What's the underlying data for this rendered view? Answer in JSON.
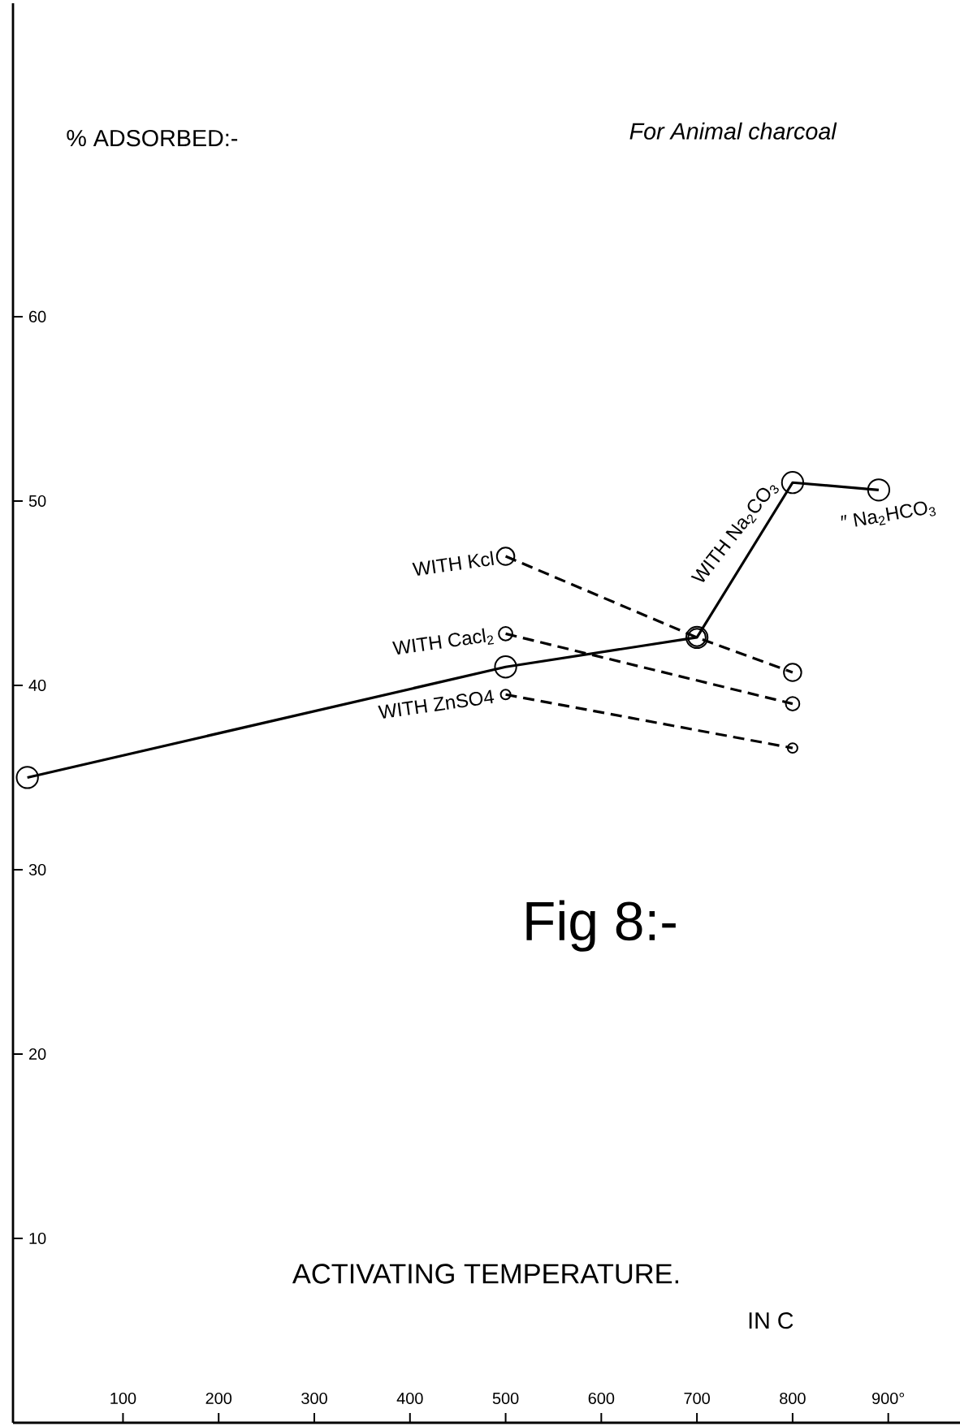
{
  "chart_data": {
    "type": "line",
    "title": "Fig 8:-",
    "subtitle": "For Animal charcoal",
    "xlabel": "ACTIVATING TEMPERATURE.",
    "ylabel": "% ADSORBED:-",
    "annotations": [
      {
        "text": "″ Na$_{2}$HCO$_{3}$",
        "x": 890,
        "y": 50.6
      },
      "IN C"
    ],
    "xlim": [
      -15,
      975
    ],
    "ylim": [
      0,
      77
    ],
    "xticks": [
      100,
      200,
      300,
      400,
      500,
      600,
      700,
      800,
      {
        "value": 900,
        "label": "900°"
      }
    ],
    "yticks": [
      10,
      20,
      30,
      40,
      50,
      60
    ],
    "marker": "circle",
    "grid": false,
    "legend": false,
    "series": [
      {
        "name": "WITH Na$_{2}$CO$_{3}$",
        "color": "#000000",
        "line_style": "solid",
        "x": [
          0,
          500,
          700,
          800,
          890
        ],
        "values": [
          35,
          41,
          42.6,
          51,
          50.6
        ]
      },
      {
        "name": "WITH Kcl",
        "color": "#000000",
        "line_style": "dashed",
        "x": [
          500,
          700,
          800
        ],
        "values": [
          47,
          42.6,
          40.7
        ]
      },
      {
        "name": "WITH Cacl$_{2}$",
        "color": "#000000",
        "line_style": "dashed",
        "x": [
          500,
          800
        ],
        "values": [
          42.8,
          39.0
        ]
      },
      {
        "name": "WITH ZnSO4",
        "color": "#000000",
        "line_style": "dashed",
        "x": [
          500,
          800
        ],
        "values": [
          39.5,
          36.6
        ]
      }
    ]
  }
}
